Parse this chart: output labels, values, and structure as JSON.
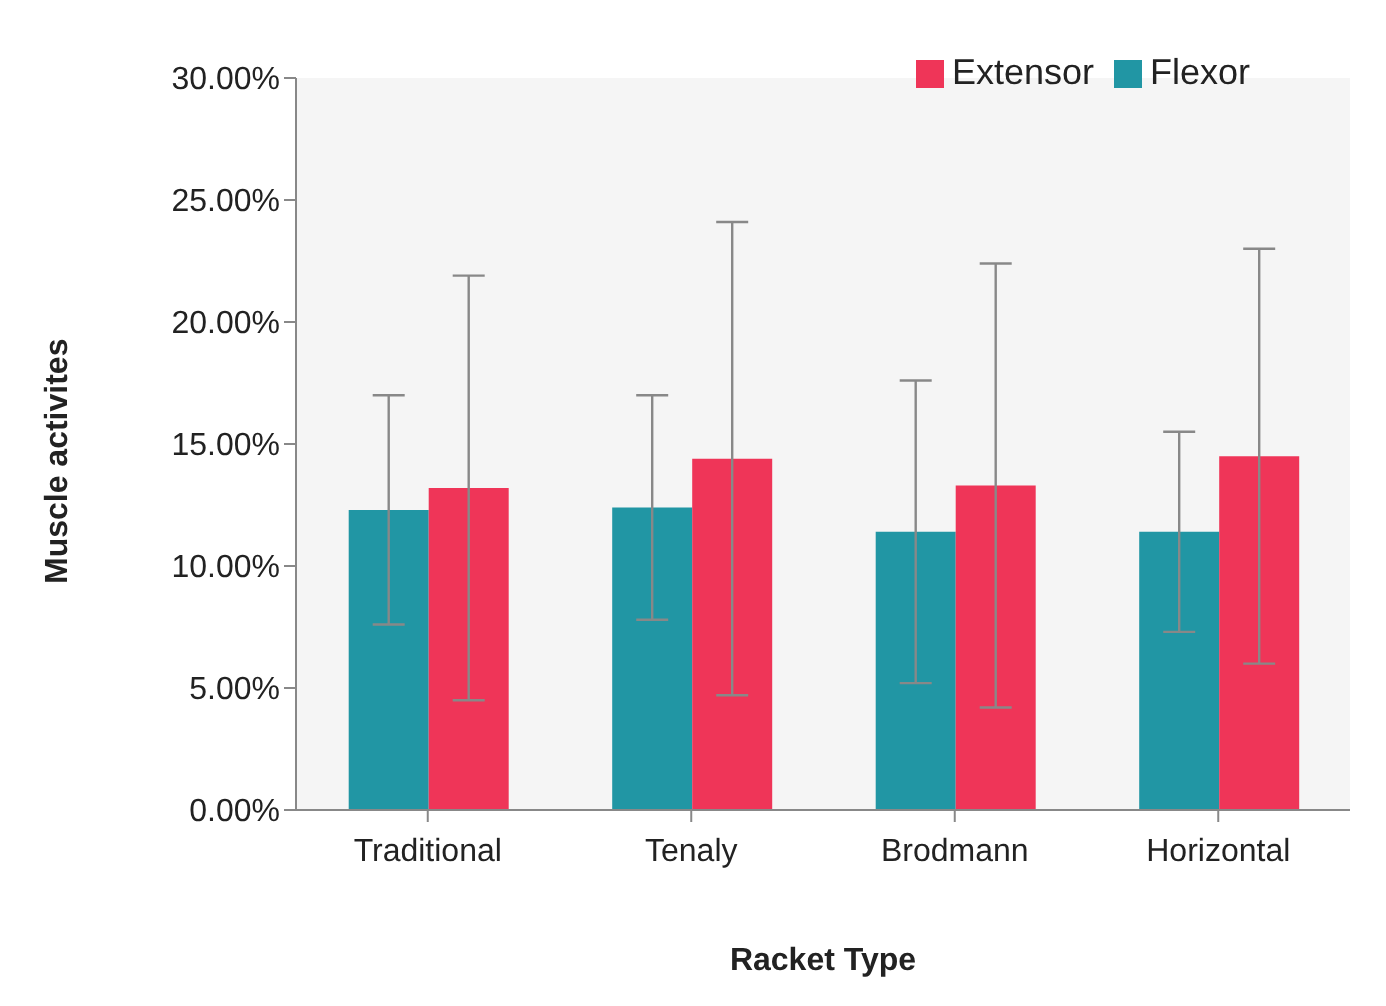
{
  "chart_data": {
    "type": "bar",
    "xlabel": "Racket Type",
    "ylabel": "Muscle activites",
    "categories": [
      "Traditional",
      "Tenaly",
      "Brodmann",
      "Horizontal"
    ],
    "series": [
      {
        "name": "Flexor",
        "color": "#2196a4",
        "values": [
          12.3,
          12.4,
          11.4,
          11.4
        ],
        "errors": [
          4.7,
          4.6,
          6.2,
          4.1
        ]
      },
      {
        "name": "Extensor",
        "color": "#ef3558",
        "values": [
          13.2,
          14.4,
          13.3,
          14.5
        ],
        "errors": [
          8.7,
          9.7,
          9.1,
          8.5
        ]
      }
    ],
    "ylim": [
      0,
      30
    ],
    "yticks": [
      {
        "value": 0,
        "label": "0.00%"
      },
      {
        "value": 5,
        "label": "5.00%"
      },
      {
        "value": 10,
        "label": "10.00%"
      },
      {
        "value": 15,
        "label": "15.00%"
      },
      {
        "value": 20,
        "label": "20.00%"
      },
      {
        "value": 25,
        "label": "25.00%"
      },
      {
        "value": 30,
        "label": "30.00%"
      }
    ],
    "grid": false,
    "legend": "top right"
  }
}
